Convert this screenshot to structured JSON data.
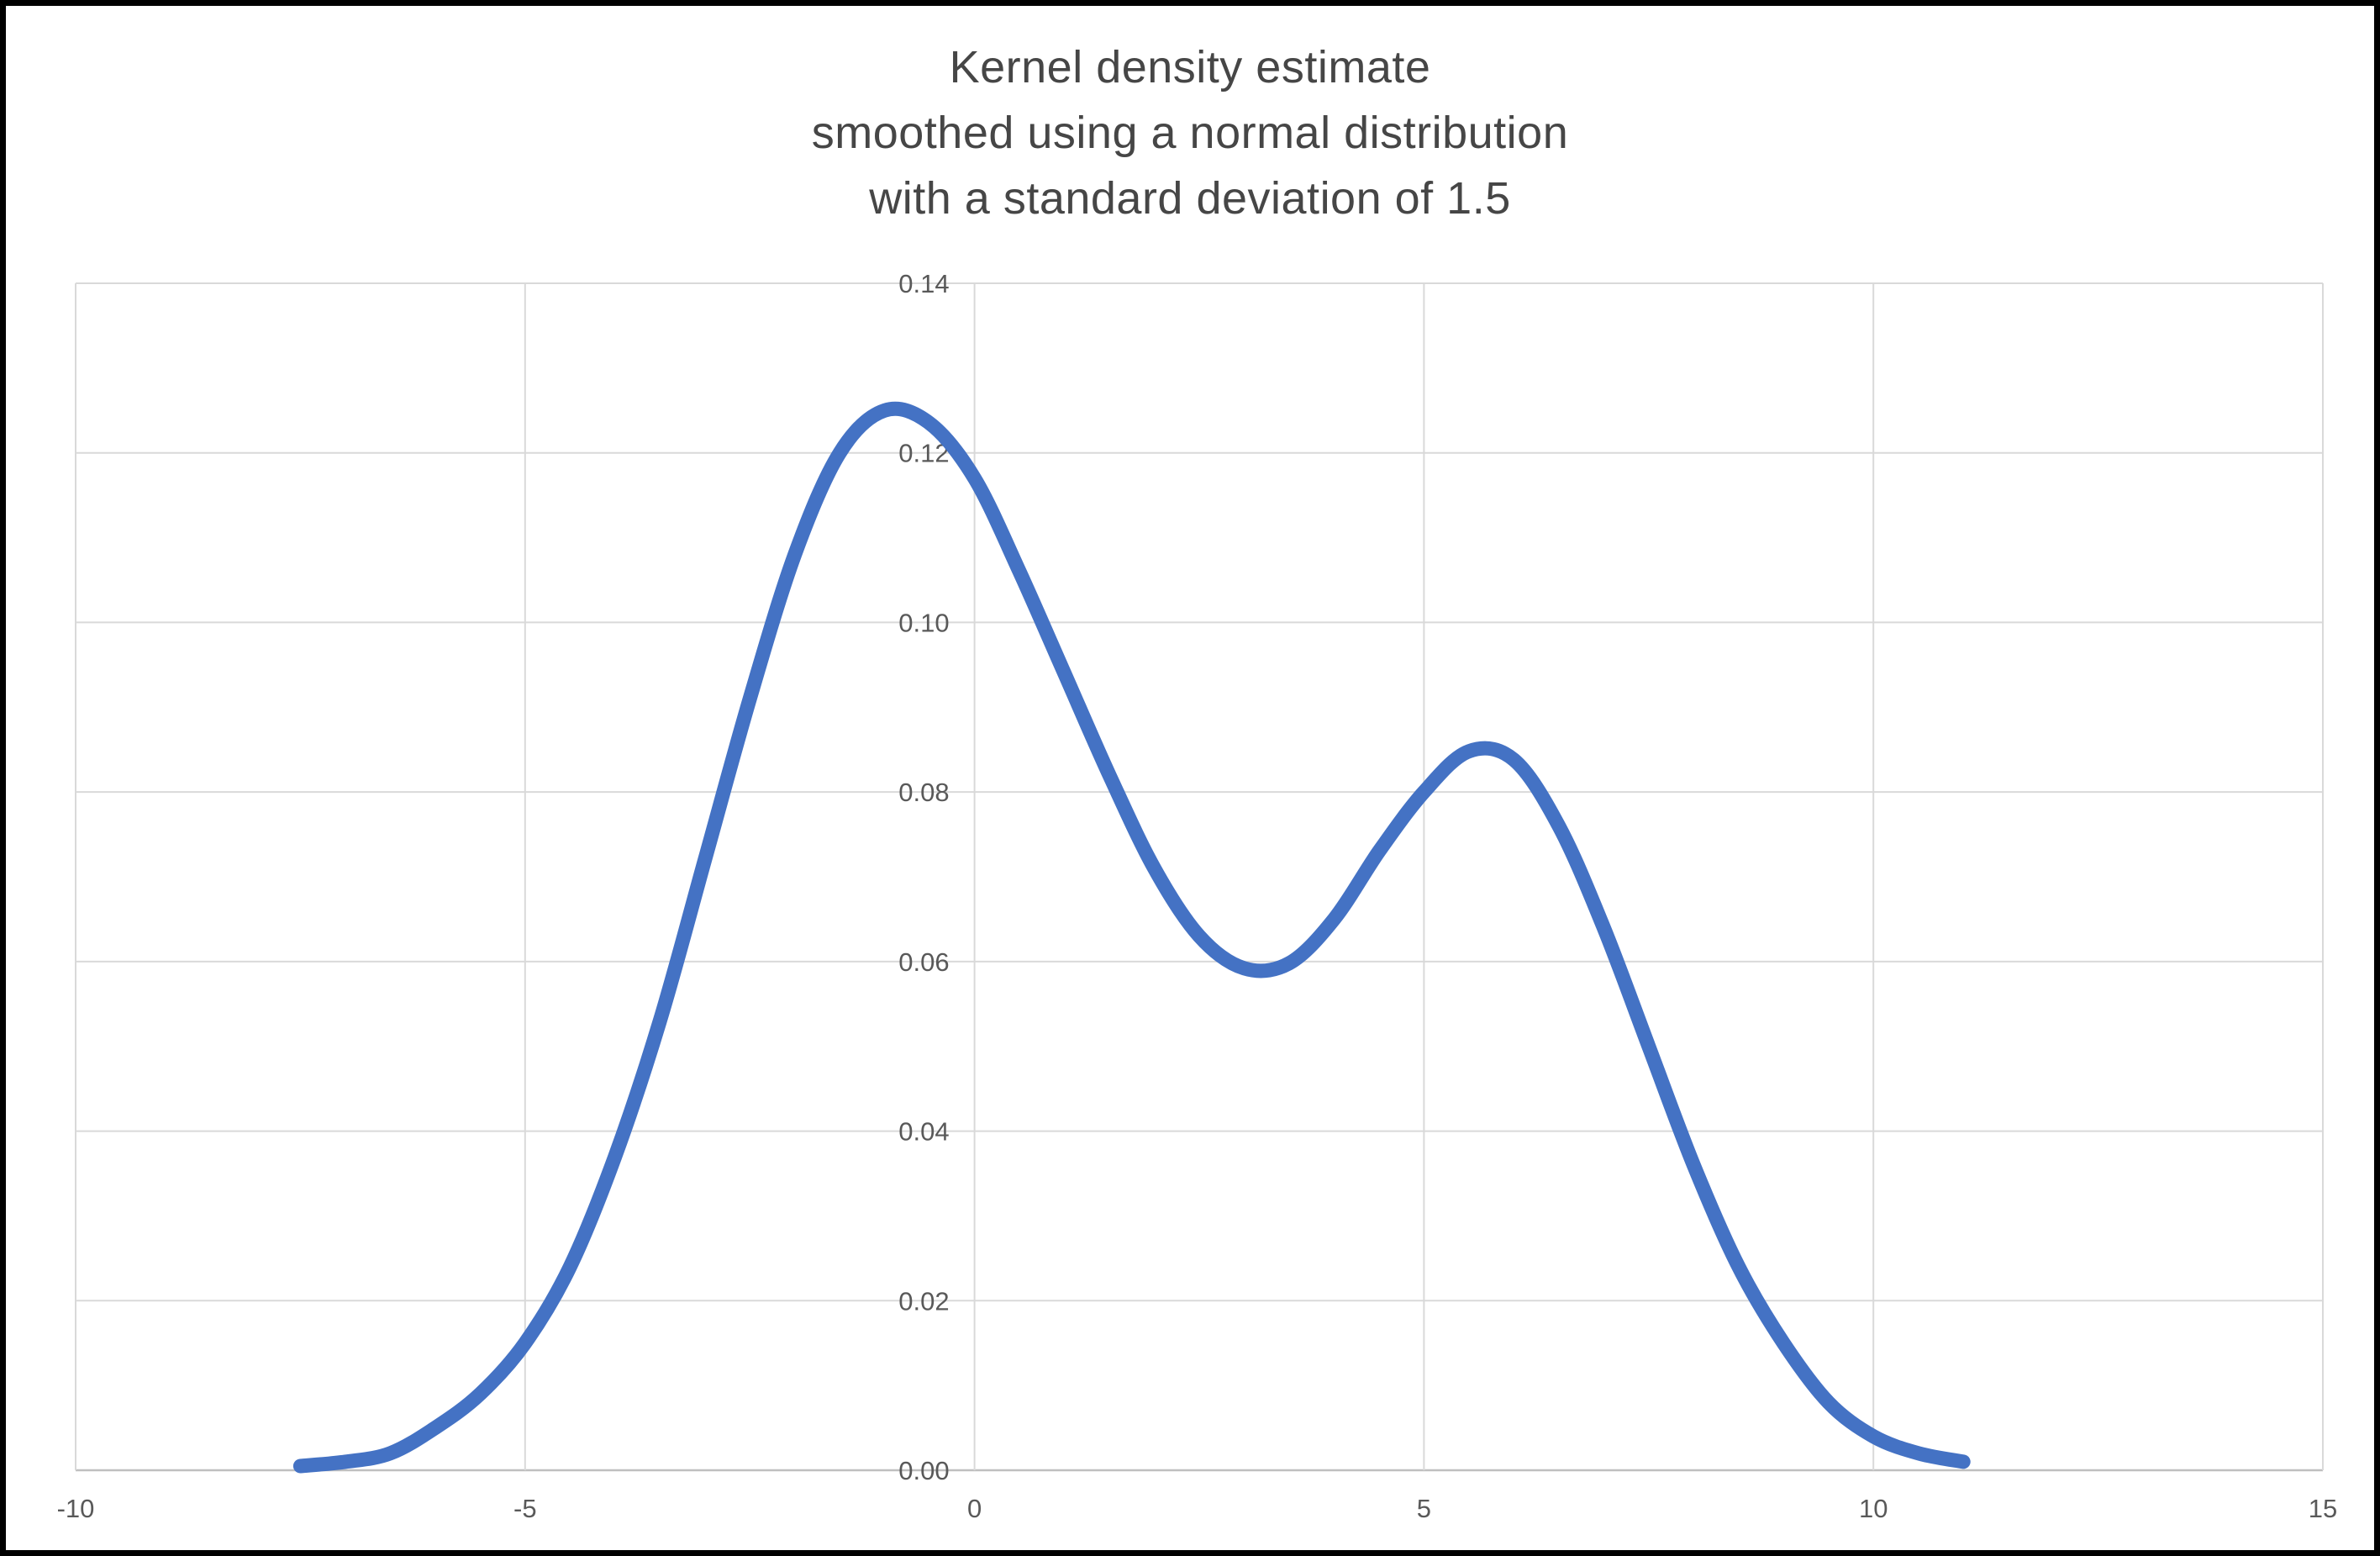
{
  "chart_data": {
    "type": "line",
    "title": "Kernel density estimate\nsmoothed using a normal distribution\nwith a standard deviation of 1.5",
    "xlabel": "",
    "ylabel": "",
    "xlim": [
      -10,
      15
    ],
    "ylim": [
      0,
      0.14
    ],
    "x_ticks": [
      -10,
      -5,
      0,
      5,
      10,
      15
    ],
    "x_tick_labels": [
      "-10",
      "-5",
      "0",
      "5",
      "10",
      "15"
    ],
    "y_ticks": [
      0.0,
      0.02,
      0.04,
      0.06,
      0.08,
      0.1,
      0.12,
      0.14
    ],
    "y_tick_labels": [
      "0.00",
      "0.02",
      "0.04",
      "0.06",
      "0.08",
      "0.10",
      "0.12",
      "0.14"
    ],
    "grid": true,
    "legend": "none",
    "series": [
      {
        "name": "kernel-density-estimate",
        "x": [
          -7.5,
          -7,
          -6.5,
          -6,
          -5.5,
          -5,
          -4.5,
          -4,
          -3.5,
          -3,
          -2.5,
          -2,
          -1.5,
          -1,
          -0.5,
          0,
          0.5,
          1,
          1.5,
          2,
          2.5,
          3,
          3.5,
          4,
          4.5,
          5,
          5.5,
          6,
          6.5,
          7,
          7.5,
          8,
          8.5,
          9,
          9.5,
          10,
          10.5,
          11
        ],
        "y": [
          0.0005,
          0.001,
          0.002,
          0.005,
          0.009,
          0.015,
          0.024,
          0.037,
          0.053,
          0.072,
          0.091,
          0.108,
          0.12,
          0.125,
          0.1235,
          0.117,
          0.106,
          0.094,
          0.082,
          0.071,
          0.063,
          0.0592,
          0.0598,
          0.065,
          0.073,
          0.08,
          0.0848,
          0.0838,
          0.076,
          0.064,
          0.05,
          0.036,
          0.024,
          0.015,
          0.008,
          0.004,
          0.002,
          0.001
        ]
      }
    ],
    "colors": {
      "line": "#4472C4",
      "grid": "#D9D9D9",
      "axis": "#BFBFBF",
      "tick_text": "#595959",
      "title_text": "#464646"
    }
  }
}
